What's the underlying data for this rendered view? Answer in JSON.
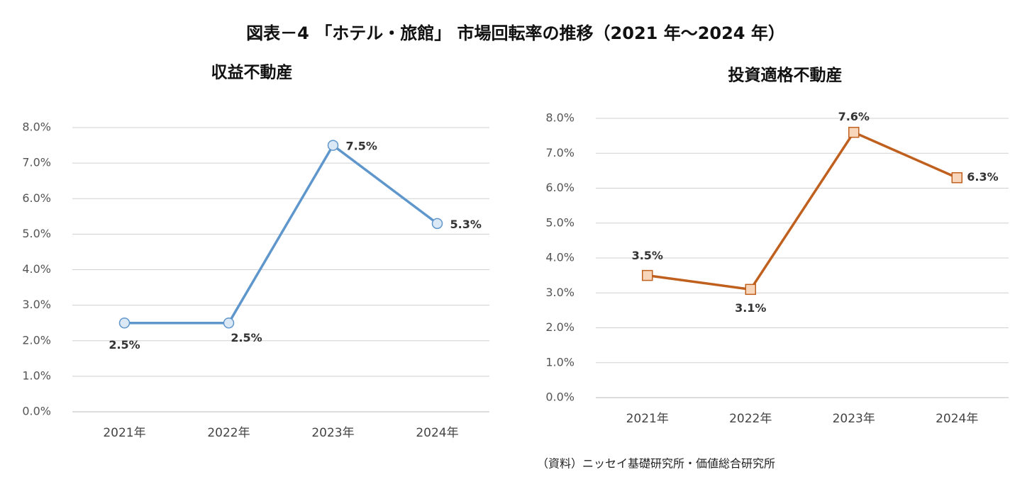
{
  "title": "図表－4 「ホテル・旅館」 市場回転率の推移（2021 年～2024 年）",
  "source": "（資料）ニッセイ基礎研究所・価値総合研究所",
  "chart_data": [
    {
      "type": "line",
      "title": "収益不動産",
      "categories": [
        "2021年",
        "2022年",
        "2023年",
        "2024年"
      ],
      "values": [
        2.5,
        2.5,
        7.5,
        5.3
      ],
      "value_labels": [
        "2.5%",
        "2.5%",
        "7.5%",
        "5.3%"
      ],
      "color": "#5f97cc",
      "marker": "circle",
      "marker_fill": "#dbe8f5",
      "ylim": [
        0,
        8
      ],
      "yticks": [
        {
          "value": 0,
          "label": "0.0%"
        },
        {
          "value": 1,
          "label": "1.0%"
        },
        {
          "value": 2,
          "label": "2.0%"
        },
        {
          "value": 3,
          "label": "3.0%"
        },
        {
          "value": 4,
          "label": "4.0%"
        },
        {
          "value": 5,
          "label": "5.0%"
        },
        {
          "value": 6,
          "label": "6.0%"
        },
        {
          "value": 7,
          "label": "7.0%"
        },
        {
          "value": 8,
          "label": "8.0%"
        }
      ],
      "grid": true
    },
    {
      "type": "line",
      "title": "投資適格不動産",
      "categories": [
        "2021年",
        "2022年",
        "2023年",
        "2024年"
      ],
      "values": [
        3.5,
        3.1,
        7.6,
        6.3
      ],
      "value_labels": [
        "3.5%",
        "3.1%",
        "7.6%",
        "6.3%"
      ],
      "color": "#c0601f",
      "marker": "square",
      "marker_fill": "#f8d6bb",
      "ylim": [
        0,
        8
      ],
      "yticks": [
        {
          "value": 0,
          "label": "0.0%"
        },
        {
          "value": 1,
          "label": "1.0%"
        },
        {
          "value": 2,
          "label": "2.0%"
        },
        {
          "value": 3,
          "label": "3.0%"
        },
        {
          "value": 4,
          "label": "4.0%"
        },
        {
          "value": 5,
          "label": "5.0%"
        },
        {
          "value": 6,
          "label": "6.0%"
        },
        {
          "value": 7,
          "label": "7.0%"
        },
        {
          "value": 8,
          "label": "8.0%"
        }
      ],
      "grid": true
    }
  ]
}
